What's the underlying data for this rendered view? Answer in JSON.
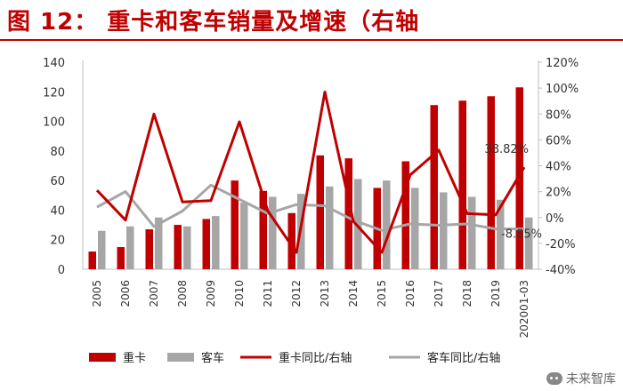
{
  "header": {
    "title": "图 12：  重卡和客车销量及增速（右轴"
  },
  "watermark": {
    "text": "未来智库",
    "icon": "wechat-icon"
  },
  "colors": {
    "heavy": "#c00000",
    "bus": "#a6a6a6",
    "title": "#c00000"
  },
  "chart_data": {
    "type": "bar",
    "categories": [
      "2005",
      "2006",
      "2007",
      "2008",
      "2009",
      "2010",
      "2011",
      "2012",
      "2013",
      "2014",
      "2015",
      "2016",
      "2017",
      "2018",
      "2019",
      "202001-03"
    ],
    "series": [
      {
        "name": "重卡",
        "kind": "bar",
        "axis": "left",
        "values": [
          12,
          15,
          27,
          30,
          34,
          60,
          53,
          38,
          77,
          75,
          55,
          73,
          111,
          114,
          117,
          123
        ]
      },
      {
        "name": "客车",
        "kind": "bar",
        "axis": "left",
        "values": [
          26,
          29,
          35,
          29,
          36,
          45,
          49,
          51,
          56,
          61,
          60,
          55,
          52,
          49,
          47,
          35
        ]
      },
      {
        "name": "重卡同比/右轴",
        "kind": "line",
        "axis": "right",
        "values": [
          21,
          -2,
          80,
          12,
          13,
          74,
          5,
          -27,
          97,
          -3,
          -27,
          33,
          52,
          3,
          2,
          38.82
        ]
      },
      {
        "name": "客车同比/右轴",
        "kind": "line",
        "axis": "right",
        "values": [
          8,
          20,
          -7,
          5,
          25,
          14,
          3,
          10,
          9,
          -2,
          -10,
          -5,
          -6,
          -5,
          -8.85,
          -8.85
        ]
      }
    ],
    "ylim_left": [
      0,
      140
    ],
    "yticks_left": [
      "0",
      "20",
      "40",
      "60",
      "80",
      "100",
      "120",
      "140"
    ],
    "ylim_right": [
      -40,
      120
    ],
    "yticks_right": [
      "-40%",
      "-20%",
      "0%",
      "20%",
      "40%",
      "60%",
      "80%",
      "100%",
      "120%"
    ],
    "annotations": [
      "38.82%",
      "-8.85%"
    ],
    "legend": {
      "placement": "bottom",
      "items": [
        "重卡",
        "客车",
        "重卡同比/右轴",
        "客车同比/右轴"
      ]
    },
    "grid": false
  }
}
